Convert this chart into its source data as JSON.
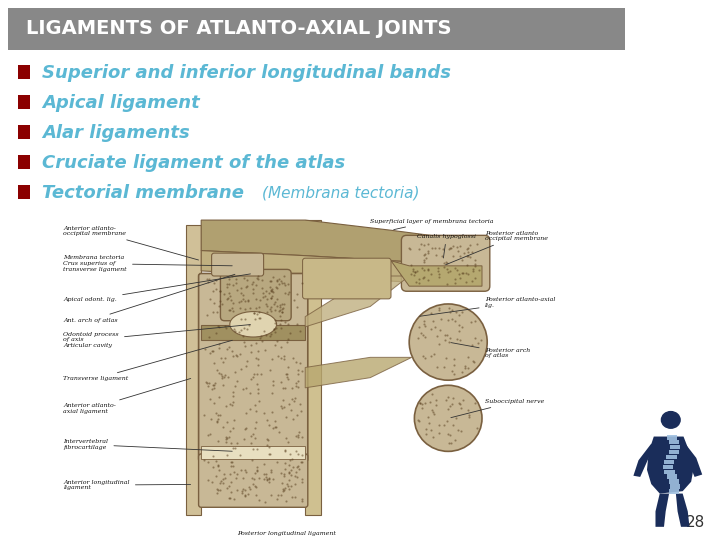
{
  "title": "LIGAMENTS OF ATLANTO-AXIAL JOINTS",
  "title_bg_color": "#888888",
  "title_text_color": "#FFFFFF",
  "slide_bg_color": "#FFFFFF",
  "bullet_color": "#8B0000",
  "bullet_text_color": "#5BB8D4",
  "bullet_items_main": [
    "Superior and inferior longitudinal bands",
    "Apical ligament",
    "Alar ligaments",
    "Cruciate ligament of the atlas"
  ],
  "bullet_last_main": "Tectorial membrane ",
  "bullet_last_paren": "(Membrana tectoria)",
  "bullet_text_size": 13,
  "bullet_last_paren_size": 11,
  "page_number": "28",
  "page_number_color": "#333333",
  "spine_body_color": "#1a2d5a",
  "spine_spine_color": "#a0c0e0",
  "img_bg_color": "#f0ead8",
  "img_bone_color": "#c8b896",
  "img_bone_edge": "#7a6040",
  "img_ligament_color": "#b8a878",
  "img_dark_bone": "#9a8060"
}
